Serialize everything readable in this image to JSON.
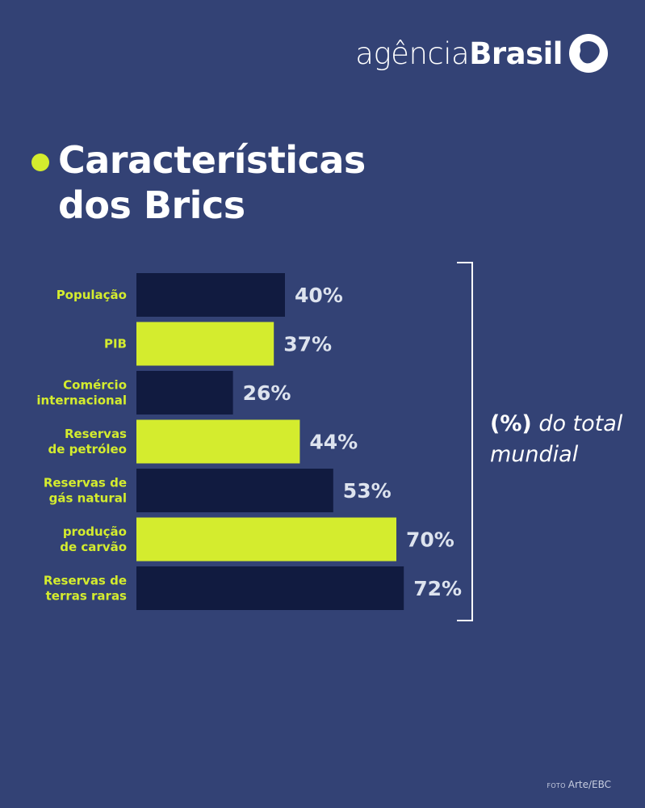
{
  "brand": {
    "light": "agência",
    "bold": "Brasil"
  },
  "title": {
    "line1": "Características",
    "line2": "dos Brics"
  },
  "note": {
    "paren": "(%)",
    "rest1": " do total",
    "rest2": "mundial"
  },
  "credit": {
    "foto": "FOTO",
    "text": "Arte/EBC"
  },
  "colors": {
    "background": "#334275",
    "bar_dark": "#111b40",
    "bar_accent": "#d4ec2e",
    "value_text": "#dde3ee"
  },
  "chart_data": {
    "type": "bar",
    "orientation": "horizontal",
    "categories": [
      [
        "População"
      ],
      [
        "PIB"
      ],
      [
        "Comércio",
        "internacional"
      ],
      [
        "Reservas",
        "de petróleo"
      ],
      [
        "Reservas de",
        "gás natural"
      ],
      [
        "produção",
        "de carvão"
      ],
      [
        "Reservas de",
        "terras raras"
      ]
    ],
    "values": [
      40,
      37,
      26,
      44,
      53,
      70,
      72
    ],
    "value_labels": [
      "40%",
      "37%",
      "26%",
      "44%",
      "53%",
      "70%",
      "72%"
    ],
    "bar_colors": [
      "dark",
      "accent",
      "dark",
      "accent",
      "dark",
      "accent",
      "dark"
    ],
    "xlim": [
      0,
      100
    ],
    "grid": false
  }
}
